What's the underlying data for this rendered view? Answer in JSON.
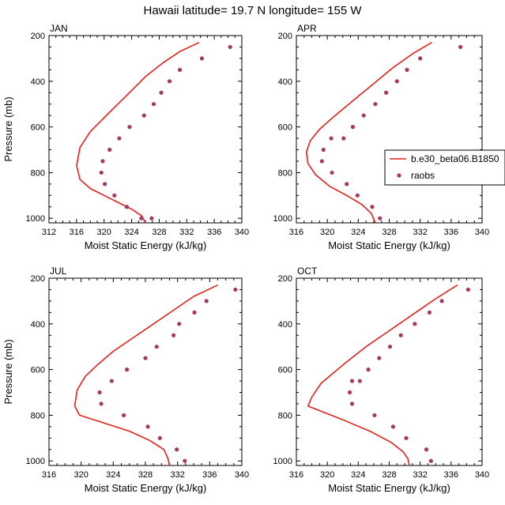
{
  "figure_title": "Hawaii  latitude= 19.7 N longitude= 155 W",
  "colors": {
    "model": "#e8201c",
    "obs": "#a8385e",
    "frame": "#000000"
  },
  "legend": {
    "model_label": "b.e30_beta06.B1850",
    "obs_label": "raobs",
    "position": "right of APR panel"
  },
  "chart_data": [
    {
      "type": "line",
      "panel": "JAN",
      "xlabel": "Moist Static Energy (kJ/kg)",
      "ylabel": "Pressure (mb)",
      "xlim": [
        312,
        340
      ],
      "ylim": [
        200,
        1020
      ],
      "y_inverted": true,
      "xticks": [
        312,
        316,
        320,
        324,
        328,
        332,
        336,
        340
      ],
      "yticks": [
        200,
        400,
        600,
        800,
        1000
      ],
      "series": [
        {
          "name": "b.e30_beta06.B1850",
          "style": "line",
          "x": [
            333.8,
            331,
            328.5,
            326,
            324,
            322,
            320,
            318,
            316.5,
            316,
            316.5,
            318,
            320,
            322,
            324,
            325.5,
            326
          ],
          "y": [
            230,
            270,
            320,
            380,
            440,
            500,
            560,
            620,
            690,
            770,
            830,
            870,
            900,
            930,
            960,
            990,
            1020
          ]
        },
        {
          "name": "raobs",
          "style": "marker",
          "x": [
            338.3,
            334.2,
            331,
            329.5,
            328.3,
            327.2,
            325.8,
            323.7,
            322.2,
            320.8,
            319.8,
            319.6,
            320.1,
            321.5,
            323.3,
            325.4,
            326.9
          ],
          "y": [
            250,
            300,
            350,
            400,
            450,
            500,
            550,
            600,
            650,
            700,
            750,
            800,
            850,
            900,
            950,
            1000,
            1000
          ]
        }
      ]
    },
    {
      "type": "line",
      "panel": "APR",
      "xlabel": "Moist Static Energy (kJ/kg)",
      "ylabel": "",
      "xlim": [
        316,
        340
      ],
      "ylim": [
        200,
        1020
      ],
      "y_inverted": true,
      "xticks": [
        316,
        320,
        324,
        328,
        332,
        336,
        340
      ],
      "yticks": [
        200,
        400,
        600,
        800,
        1000
      ],
      "series": [
        {
          "name": "b.e30_beta06.B1850",
          "style": "line",
          "x": [
            333.5,
            331,
            328.5,
            326,
            323.5,
            321,
            319,
            317.8,
            317.3,
            317.5,
            318.5,
            320.3,
            322.5,
            324.5,
            325.7,
            326.2
          ],
          "y": [
            230,
            280,
            340,
            410,
            480,
            550,
            610,
            660,
            710,
            760,
            810,
            860,
            900,
            940,
            980,
            1020
          ]
        },
        {
          "name": "raobs",
          "style": "marker",
          "x": [
            337.2,
            332,
            330.3,
            329,
            327.6,
            326.2,
            324.7,
            323.3,
            322.1,
            320.5,
            319.5,
            319.3,
            320.6,
            322.5,
            323.9,
            325.8,
            326.8
          ],
          "y": [
            250,
            300,
            350,
            400,
            450,
            500,
            550,
            600,
            650,
            650,
            700,
            750,
            800,
            850,
            900,
            950,
            1000
          ]
        }
      ]
    },
    {
      "type": "line",
      "panel": "JUL",
      "xlabel": "Moist Static Energy (kJ/kg)",
      "ylabel": "Pressure (mb)",
      "xlim": [
        316,
        340
      ],
      "ylim": [
        200,
        1020
      ],
      "y_inverted": true,
      "xticks": [
        316,
        320,
        324,
        328,
        332,
        336,
        340
      ],
      "yticks": [
        200,
        400,
        600,
        800,
        1000
      ],
      "series": [
        {
          "name": "b.e30_beta06.B1850",
          "style": "line",
          "x": [
            337,
            334,
            331.5,
            329,
            326.5,
            324,
            322,
            320.5,
            319.5,
            319.2,
            319.8,
            322.5,
            326,
            328.5,
            330.3,
            330.8,
            331
          ],
          "y": [
            230,
            280,
            340,
            400,
            460,
            520,
            580,
            630,
            690,
            760,
            800,
            830,
            870,
            910,
            950,
            990,
            1020
          ]
        },
        {
          "name": "raobs",
          "style": "marker",
          "x": [
            339.2,
            335.6,
            334.1,
            332.2,
            331.5,
            329.4,
            328,
            325.7,
            323.8,
            322.3,
            322.5,
            325.3,
            328.3,
            329.8,
            331.9,
            332.9
          ],
          "y": [
            250,
            300,
            350,
            400,
            450,
            500,
            550,
            600,
            650,
            700,
            750,
            800,
            850,
            900,
            950,
            1000
          ]
        }
      ]
    },
    {
      "type": "line",
      "panel": "OCT",
      "xlabel": "Moist Static Energy (kJ/kg)",
      "ylabel": "",
      "xlim": [
        316,
        340
      ],
      "ylim": [
        200,
        1020
      ],
      "y_inverted": true,
      "xticks": [
        316,
        320,
        324,
        328,
        332,
        336,
        340
      ],
      "yticks": [
        200,
        400,
        600,
        800,
        1000
      ],
      "series": [
        {
          "name": "b.e30_beta06.B1850",
          "style": "line",
          "x": [
            336.8,
            334,
            331,
            328,
            325,
            322,
            319.2,
            318,
            317.5,
            319,
            322,
            325.5,
            328.3,
            329.8,
            330.4,
            330.6
          ],
          "y": [
            230,
            290,
            360,
            430,
            500,
            580,
            660,
            720,
            760,
            780,
            820,
            870,
            920,
            960,
            990,
            1020
          ]
        },
        {
          "name": "raobs",
          "style": "marker",
          "x": [
            338.2,
            334.8,
            333.2,
            331.3,
            329.5,
            328.1,
            326.7,
            325.3,
            324.2,
            323.2,
            322.9,
            323.2,
            326.1,
            328.5,
            330.2,
            332.8,
            333.4
          ],
          "y": [
            250,
            300,
            350,
            400,
            450,
            500,
            550,
            600,
            650,
            650,
            700,
            750,
            800,
            850,
            900,
            950,
            1000
          ]
        }
      ]
    }
  ]
}
